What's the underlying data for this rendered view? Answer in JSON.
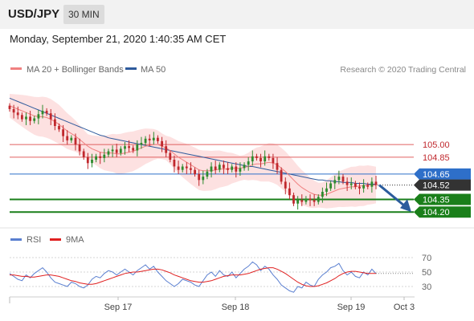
{
  "header": {
    "symbol": "USD/JPY",
    "timeframe": "30 MIN"
  },
  "timestamp": "Monday, September 21, 2020 1:40:35 AM CET",
  "legend": {
    "ma20_label": "MA 20 + Bollinger Bands",
    "ma50_label": "MA 50",
    "copyright": "Research © 2020 Trading Central",
    "rsi_label": "RSI",
    "rsi_ma_label": "9MA"
  },
  "colors": {
    "ma20": "#f08080",
    "ma50": "#2e5a9c",
    "band_fill": "#fcd9d9",
    "up_candle": "#2e8b2e",
    "down_candle": "#c0282d",
    "support": "#1a7f1a",
    "resistance": "#e06060",
    "pivot": "#2e6fc9",
    "arrow": "#2b5c9c",
    "rsi": "#5a7fd0",
    "rsi_ma": "#e02020"
  },
  "chart_data": {
    "type": "candlestick",
    "price_axis": {
      "ymin": 104.05,
      "ymax": 105.8
    },
    "levels": [
      {
        "label": "105.00",
        "value": 105.0,
        "kind": "resistance"
      },
      {
        "label": "104.85",
        "value": 104.85,
        "kind": "resistance"
      },
      {
        "label": "104.65",
        "value": 104.65,
        "kind": "pivot"
      },
      {
        "label": "104.52",
        "value": 104.52,
        "kind": "last_price"
      },
      {
        "label": "104.35",
        "value": 104.35,
        "kind": "support"
      },
      {
        "label": "104.20",
        "value": 104.2,
        "kind": "support"
      }
    ],
    "x_ticks": [
      "Sep 17",
      "Sep 18",
      "Sep 19",
      "Oct 3"
    ],
    "closes": [
      105.42,
      105.38,
      105.35,
      105.3,
      105.33,
      105.28,
      105.31,
      105.36,
      105.4,
      105.37,
      105.3,
      105.22,
      105.18,
      105.1,
      105.05,
      105.08,
      105.0,
      104.92,
      104.85,
      104.78,
      104.82,
      104.86,
      104.84,
      104.88,
      104.92,
      104.94,
      104.9,
      104.95,
      104.98,
      104.96,
      104.93,
      105.0,
      105.02,
      105.07,
      105.05,
      105.08,
      105.04,
      104.98,
      104.9,
      104.82,
      104.74,
      104.7,
      104.74,
      104.72,
      104.7,
      104.65,
      104.58,
      104.62,
      104.68,
      104.74,
      104.7,
      104.76,
      104.72,
      104.7,
      104.74,
      104.68,
      104.72,
      104.76,
      104.8,
      104.86,
      104.84,
      104.8,
      104.86,
      104.84,
      104.78,
      104.7,
      104.56,
      104.48,
      104.4,
      104.3,
      104.34,
      104.32,
      104.36,
      104.34,
      104.32,
      104.38,
      104.44,
      104.48,
      104.54,
      104.58,
      104.62,
      104.56,
      104.52,
      104.54,
      104.5,
      104.48,
      104.52,
      104.5,
      104.56,
      104.52
    ],
    "ma20": [
      105.46,
      105.44,
      105.42,
      105.4,
      105.38,
      105.36,
      105.34,
      105.33,
      105.33,
      105.32,
      105.3,
      105.27,
      105.24,
      105.2,
      105.16,
      105.13,
      105.1,
      105.06,
      105.02,
      104.98,
      104.95,
      104.93,
      104.91,
      104.9,
      104.9,
      104.9,
      104.89,
      104.89,
      104.9,
      104.91,
      104.92,
      104.94,
      104.96,
      104.98,
      104.99,
      105.0,
      105.0,
      104.98,
      104.96,
      104.93,
      104.89,
      104.85,
      104.82,
      104.79,
      104.76,
      104.73,
      104.7,
      104.69,
      104.69,
      104.69,
      104.7,
      104.71,
      104.71,
      104.71,
      104.72,
      104.72,
      104.72,
      104.73,
      104.74,
      104.76,
      104.77,
      104.77,
      104.78,
      104.79,
      104.78,
      104.76,
      104.72,
      104.68,
      104.63,
      104.58,
      104.53,
      104.49,
      104.46,
      104.43,
      104.41,
      104.4,
      104.4,
      104.41,
      104.43,
      104.45,
      104.47,
      104.48,
      104.49,
      104.5,
      104.5,
      104.51,
      104.51,
      104.52,
      104.52,
      104.52
    ],
    "ma50": [
      105.55,
      105.53,
      105.51,
      105.49,
      105.47,
      105.45,
      105.43,
      105.41,
      105.39,
      105.37,
      105.35,
      105.33,
      105.31,
      105.29,
      105.27,
      105.25,
      105.23,
      105.21,
      105.19,
      105.17,
      105.15,
      105.13,
      105.11,
      105.1,
      105.08,
      105.07,
      105.06,
      105.05,
      105.04,
      105.03,
      105.02,
      105.01,
      105.0,
      104.99,
      104.98,
      104.97,
      104.96,
      104.95,
      104.94,
      104.93,
      104.92,
      104.91,
      104.9,
      104.89,
      104.88,
      104.87,
      104.86,
      104.85,
      104.84,
      104.83,
      104.82,
      104.81,
      104.8,
      104.79,
      104.78,
      104.77,
      104.76,
      104.75,
      104.74,
      104.74,
      104.73,
      104.72,
      104.71,
      104.7,
      104.69,
      104.68,
      104.67,
      104.66,
      104.65,
      104.64,
      104.63,
      104.62,
      104.61,
      104.6,
      104.59,
      104.58,
      104.58,
      104.57,
      104.57,
      104.56,
      104.56,
      104.55,
      104.55,
      104.55,
      104.54,
      104.54,
      104.54,
      104.53,
      104.53,
      104.53
    ],
    "rsi_axis": {
      "ymin": 20,
      "ymax": 80,
      "ticks": [
        70,
        50,
        30
      ]
    },
    "rsi": [
      48,
      44,
      40,
      38,
      46,
      42,
      48,
      52,
      56,
      50,
      42,
      36,
      34,
      32,
      30,
      36,
      34,
      30,
      28,
      32,
      40,
      44,
      42,
      48,
      52,
      50,
      46,
      50,
      54,
      50,
      46,
      52,
      56,
      60,
      54,
      58,
      50,
      44,
      38,
      34,
      30,
      34,
      40,
      38,
      36,
      32,
      30,
      38,
      46,
      50,
      44,
      52,
      46,
      44,
      50,
      42,
      48,
      54,
      58,
      64,
      60,
      52,
      58,
      54,
      46,
      40,
      32,
      28,
      24,
      22,
      30,
      28,
      36,
      32,
      30,
      40,
      46,
      50,
      56,
      58,
      62,
      52,
      46,
      50,
      44,
      42,
      50,
      46,
      54,
      48
    ],
    "rsi_ma": [
      46,
      46,
      45,
      44,
      44,
      43,
      43,
      44,
      45,
      46,
      46,
      45,
      44,
      42,
      40,
      38,
      37,
      35,
      34,
      33,
      33,
      34,
      36,
      38,
      40,
      42,
      44,
      46,
      48,
      49,
      50,
      50,
      51,
      52,
      53,
      54,
      54,
      53,
      51,
      49,
      46,
      44,
      42,
      40,
      38,
      37,
      36,
      36,
      37,
      38,
      40,
      42,
      44,
      45,
      46,
      46,
      46,
      47,
      48,
      50,
      52,
      54,
      55,
      56,
      56,
      54,
      51,
      48,
      44,
      40,
      36,
      33,
      31,
      30,
      30,
      31,
      33,
      35,
      38,
      41,
      45,
      48,
      50,
      51,
      51,
      50,
      49,
      48,
      48,
      48
    ]
  }
}
